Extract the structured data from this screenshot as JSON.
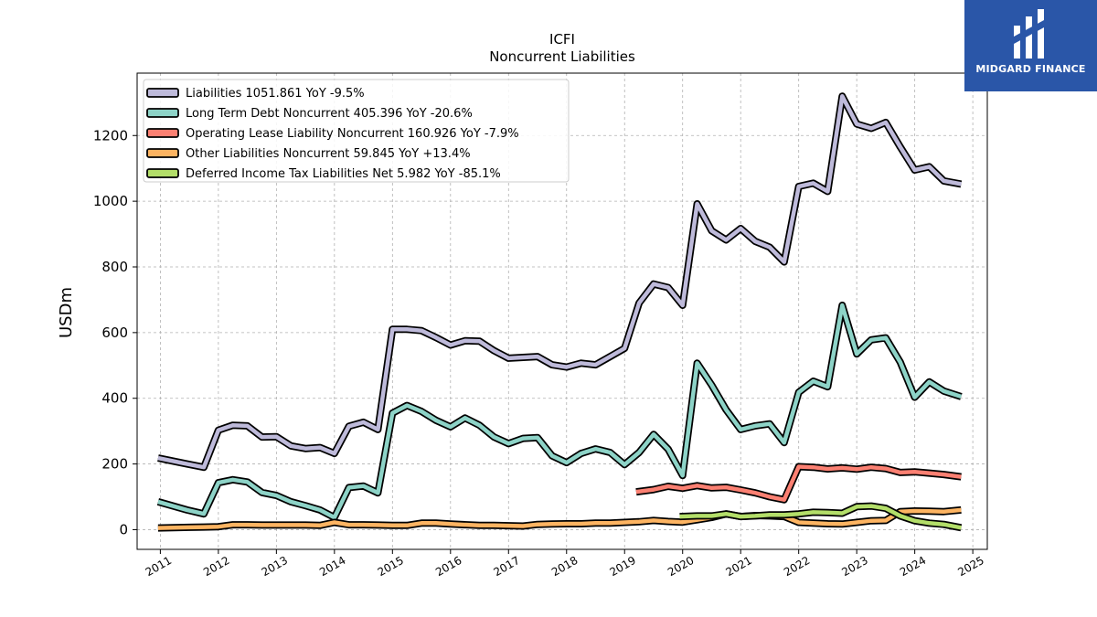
{
  "chart_data": {
    "type": "line",
    "title": "ICFI",
    "subtitle": "Noncurrent  Liabilities",
    "ylabel": "USDm",
    "xlabel": "",
    "xlim": [
      2010.6,
      2025.25
    ],
    "ylim": [
      -60,
      1390
    ],
    "x_ticks": [
      "2011",
      "2012",
      "2013",
      "2014",
      "2015",
      "2016",
      "2017",
      "2018",
      "2019",
      "2020",
      "2021",
      "2022",
      "2023",
      "2024",
      "2025"
    ],
    "y_ticks": [
      "0",
      "200",
      "400",
      "600",
      "800",
      "1000",
      "1200"
    ],
    "grid": true,
    "legend_position": "top-left",
    "series": [
      {
        "name": "Liabilities",
        "legend": "Liabilities  1051.861 YoY -9.5%",
        "color": "#bebada",
        "points": [
          [
            2010.96,
            218
          ],
          [
            2011.46,
            200
          ],
          [
            2011.75,
            190
          ],
          [
            2012.0,
            303
          ],
          [
            2012.25,
            318
          ],
          [
            2012.5,
            316
          ],
          [
            2012.75,
            282
          ],
          [
            2013.0,
            283
          ],
          [
            2013.25,
            255
          ],
          [
            2013.5,
            247
          ],
          [
            2013.75,
            250
          ],
          [
            2014.0,
            232
          ],
          [
            2014.25,
            315
          ],
          [
            2014.5,
            327
          ],
          [
            2014.75,
            305
          ],
          [
            2015.0,
            610
          ],
          [
            2015.25,
            610
          ],
          [
            2015.5,
            606
          ],
          [
            2015.75,
            585
          ],
          [
            2016.0,
            562
          ],
          [
            2016.25,
            575
          ],
          [
            2016.5,
            574
          ],
          [
            2016.75,
            545
          ],
          [
            2017.0,
            522
          ],
          [
            2017.5,
            527
          ],
          [
            2017.75,
            502
          ],
          [
            2018.0,
            495
          ],
          [
            2018.25,
            507
          ],
          [
            2018.5,
            502
          ],
          [
            2018.75,
            527
          ],
          [
            2019.0,
            552
          ],
          [
            2019.25,
            690
          ],
          [
            2019.5,
            748
          ],
          [
            2019.75,
            737
          ],
          [
            2020.0,
            683
          ],
          [
            2020.25,
            992
          ],
          [
            2020.5,
            910
          ],
          [
            2020.75,
            882
          ],
          [
            2021.0,
            917
          ],
          [
            2021.25,
            878
          ],
          [
            2021.5,
            860
          ],
          [
            2021.75,
            815
          ],
          [
            2022.0,
            1045
          ],
          [
            2022.25,
            1055
          ],
          [
            2022.5,
            1030
          ],
          [
            2022.75,
            1320
          ],
          [
            2023.0,
            1235
          ],
          [
            2023.25,
            1222
          ],
          [
            2023.5,
            1240
          ],
          [
            2023.75,
            1165
          ],
          [
            2024.0,
            1095
          ],
          [
            2024.25,
            1105
          ],
          [
            2024.5,
            1062
          ],
          [
            2024.8,
            1052
          ]
        ]
      },
      {
        "name": "Long Term Debt Noncurrent",
        "legend": "Long Term Debt Noncurrent  405.396 YoY -20.6%",
        "color": "#8dd3c7",
        "points": [
          [
            2010.96,
            85
          ],
          [
            2011.46,
            60
          ],
          [
            2011.75,
            48
          ],
          [
            2012.0,
            143
          ],
          [
            2012.25,
            152
          ],
          [
            2012.5,
            145
          ],
          [
            2012.75,
            113
          ],
          [
            2013.0,
            104
          ],
          [
            2013.25,
            85
          ],
          [
            2013.5,
            73
          ],
          [
            2013.75,
            60
          ],
          [
            2014.0,
            37
          ],
          [
            2014.25,
            128
          ],
          [
            2014.5,
            133
          ],
          [
            2014.75,
            112
          ],
          [
            2015.0,
            355
          ],
          [
            2015.25,
            378
          ],
          [
            2015.5,
            360
          ],
          [
            2015.75,
            333
          ],
          [
            2016.0,
            313
          ],
          [
            2016.25,
            340
          ],
          [
            2016.5,
            318
          ],
          [
            2016.75,
            282
          ],
          [
            2017.0,
            262
          ],
          [
            2017.25,
            278
          ],
          [
            2017.5,
            280
          ],
          [
            2017.75,
            225
          ],
          [
            2018.0,
            204
          ],
          [
            2018.25,
            232
          ],
          [
            2018.5,
            246
          ],
          [
            2018.75,
            235
          ],
          [
            2019.0,
            198
          ],
          [
            2019.25,
            235
          ],
          [
            2019.5,
            290
          ],
          [
            2019.75,
            245
          ],
          [
            2020.0,
            165
          ],
          [
            2020.25,
            507
          ],
          [
            2020.5,
            440
          ],
          [
            2020.75,
            365
          ],
          [
            2021.0,
            305
          ],
          [
            2021.25,
            316
          ],
          [
            2021.5,
            322
          ],
          [
            2021.75,
            265
          ],
          [
            2022.0,
            418
          ],
          [
            2022.25,
            452
          ],
          [
            2022.5,
            435
          ],
          [
            2022.75,
            683
          ],
          [
            2023.0,
            535
          ],
          [
            2023.25,
            578
          ],
          [
            2023.5,
            584
          ],
          [
            2023.75,
            510
          ],
          [
            2024.0,
            403
          ],
          [
            2024.25,
            450
          ],
          [
            2024.5,
            422
          ],
          [
            2024.8,
            405
          ]
        ]
      },
      {
        "name": "Operating Lease Liability Noncurrent",
        "legend": "Operating Lease Liability Noncurrent  160.926 YoY -7.9%",
        "color": "#fb8072",
        "points": [
          [
            2019.2,
            115
          ],
          [
            2019.5,
            122
          ],
          [
            2019.75,
            132
          ],
          [
            2020.0,
            126
          ],
          [
            2020.25,
            134
          ],
          [
            2020.5,
            127
          ],
          [
            2020.75,
            129
          ],
          [
            2021.0,
            121
          ],
          [
            2021.25,
            112
          ],
          [
            2021.5,
            100
          ],
          [
            2021.75,
            91
          ],
          [
            2022.0,
            192
          ],
          [
            2022.25,
            190
          ],
          [
            2022.5,
            185
          ],
          [
            2022.75,
            188
          ],
          [
            2023.0,
            184
          ],
          [
            2023.25,
            190
          ],
          [
            2023.5,
            186
          ],
          [
            2023.75,
            174
          ],
          [
            2024.0,
            176
          ],
          [
            2024.25,
            172
          ],
          [
            2024.5,
            168
          ],
          [
            2024.8,
            161
          ]
        ]
      },
      {
        "name": "Other Liabilities Noncurrent",
        "legend": "Other Liabilities Noncurrent  59.845 YoY +13.4%",
        "color": "#fdb462",
        "points": [
          [
            2010.96,
            5
          ],
          [
            2011.5,
            7
          ],
          [
            2011.75,
            8
          ],
          [
            2012.0,
            9
          ],
          [
            2012.25,
            15
          ],
          [
            2012.5,
            15
          ],
          [
            2012.75,
            14
          ],
          [
            2013.0,
            14
          ],
          [
            2013.5,
            14
          ],
          [
            2013.75,
            13
          ],
          [
            2014.0,
            22
          ],
          [
            2014.25,
            15
          ],
          [
            2014.5,
            15
          ],
          [
            2014.75,
            14
          ],
          [
            2015.0,
            13
          ],
          [
            2015.25,
            13
          ],
          [
            2015.5,
            20
          ],
          [
            2015.75,
            20
          ],
          [
            2016.0,
            17
          ],
          [
            2016.5,
            13
          ],
          [
            2016.75,
            13
          ],
          [
            2017.0,
            12
          ],
          [
            2017.25,
            11
          ],
          [
            2017.5,
            16
          ],
          [
            2017.75,
            17
          ],
          [
            2018.0,
            18
          ],
          [
            2018.25,
            18
          ],
          [
            2018.5,
            20
          ],
          [
            2018.75,
            20
          ],
          [
            2019.0,
            22
          ],
          [
            2019.25,
            24
          ],
          [
            2019.5,
            28
          ],
          [
            2019.75,
            25
          ],
          [
            2020.0,
            23
          ],
          [
            2020.25,
            30
          ],
          [
            2020.5,
            37
          ],
          [
            2020.75,
            48
          ],
          [
            2021.0,
            40
          ],
          [
            2021.25,
            43
          ],
          [
            2021.5,
            42
          ],
          [
            2021.75,
            40
          ],
          [
            2022.0,
            22
          ],
          [
            2022.25,
            20
          ],
          [
            2022.5,
            18
          ],
          [
            2022.75,
            17
          ],
          [
            2023.0,
            22
          ],
          [
            2023.25,
            27
          ],
          [
            2023.5,
            28
          ],
          [
            2023.75,
            55
          ],
          [
            2024.0,
            57
          ],
          [
            2024.25,
            56
          ],
          [
            2024.5,
            55
          ],
          [
            2024.8,
            60
          ]
        ]
      },
      {
        "name": "Deferred Income Tax Liabilities Net",
        "legend": "Deferred Income Tax Liabilities Net  5.982 YoY -85.1%",
        "color": "#b3de69",
        "points": [
          [
            2019.95,
            40
          ],
          [
            2020.25,
            42
          ],
          [
            2020.5,
            42
          ],
          [
            2020.75,
            48
          ],
          [
            2021.0,
            40
          ],
          [
            2021.25,
            42
          ],
          [
            2021.5,
            45
          ],
          [
            2021.75,
            45
          ],
          [
            2022.0,
            48
          ],
          [
            2022.25,
            53
          ],
          [
            2022.5,
            52
          ],
          [
            2022.75,
            50
          ],
          [
            2023.0,
            70
          ],
          [
            2023.25,
            72
          ],
          [
            2023.5,
            65
          ],
          [
            2023.75,
            42
          ],
          [
            2024.0,
            27
          ],
          [
            2024.25,
            20
          ],
          [
            2024.5,
            16
          ],
          [
            2024.8,
            6
          ]
        ]
      }
    ]
  },
  "branding": {
    "logo_text": "MIDGARD FINANCE",
    "logo_bg": "#2a56a8"
  }
}
